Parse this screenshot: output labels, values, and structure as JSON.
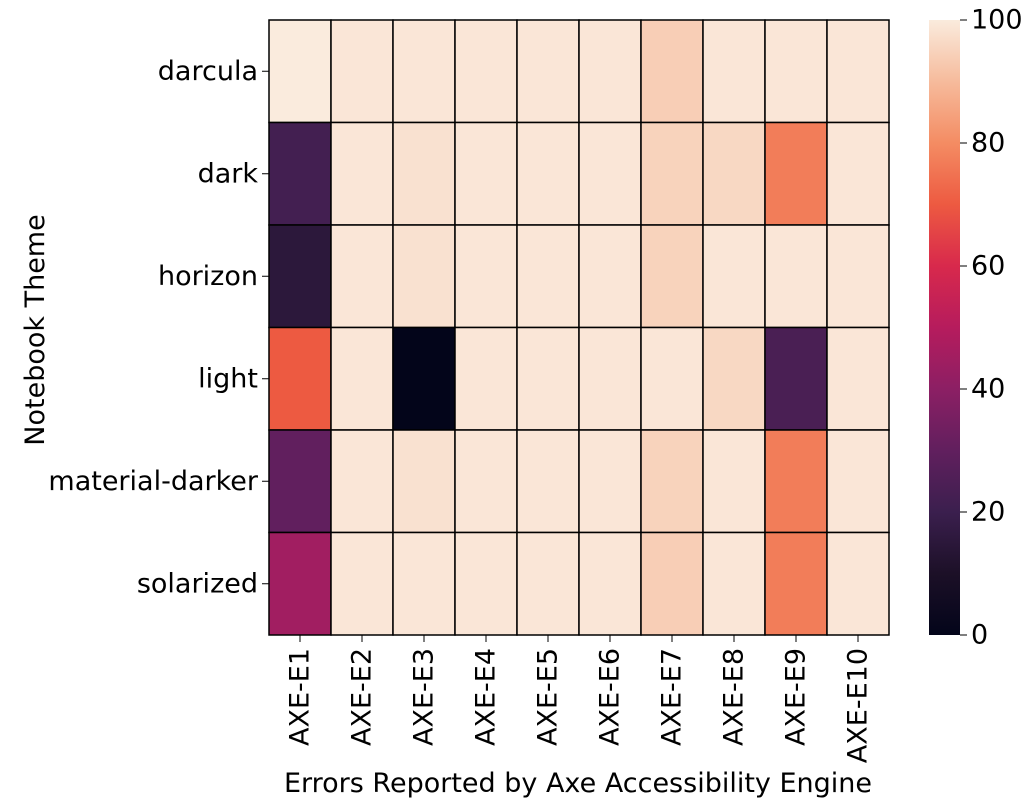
{
  "chart_data": {
    "type": "heatmap",
    "xlabel": "Errors Reported by Axe Accessibility Engine",
    "ylabel": "Notebook Theme",
    "x_categories": [
      "AXE-E1",
      "AXE-E2",
      "AXE-E3",
      "AXE-E4",
      "AXE-E5",
      "AXE-E6",
      "AXE-E7",
      "AXE-E8",
      "AXE-E9",
      "AXE-E10"
    ],
    "y_categories": [
      "darcula",
      "dark",
      "horizon",
      "light",
      "material-darker",
      "solarized"
    ],
    "values": [
      [
        100,
        99,
        99,
        99,
        99,
        99,
        94,
        99,
        99,
        99
      ],
      [
        22,
        99,
        98,
        99,
        99,
        99,
        95,
        96,
        77,
        99
      ],
      [
        15,
        99,
        98,
        99,
        99,
        99,
        95,
        99,
        99,
        99
      ],
      [
        70,
        99,
        0,
        99,
        99,
        99,
        99,
        96,
        24,
        99
      ],
      [
        30,
        99,
        98,
        99,
        99,
        99,
        95,
        99,
        77,
        99
      ],
      [
        45,
        99,
        99,
        99,
        99,
        99,
        94,
        99,
        77,
        99
      ]
    ],
    "colorbar": {
      "min": 0,
      "max": 100,
      "ticks": [
        "0",
        "20",
        "40",
        "60",
        "80",
        "100"
      ],
      "colormap": "rocket"
    },
    "grid_lines": true
  }
}
